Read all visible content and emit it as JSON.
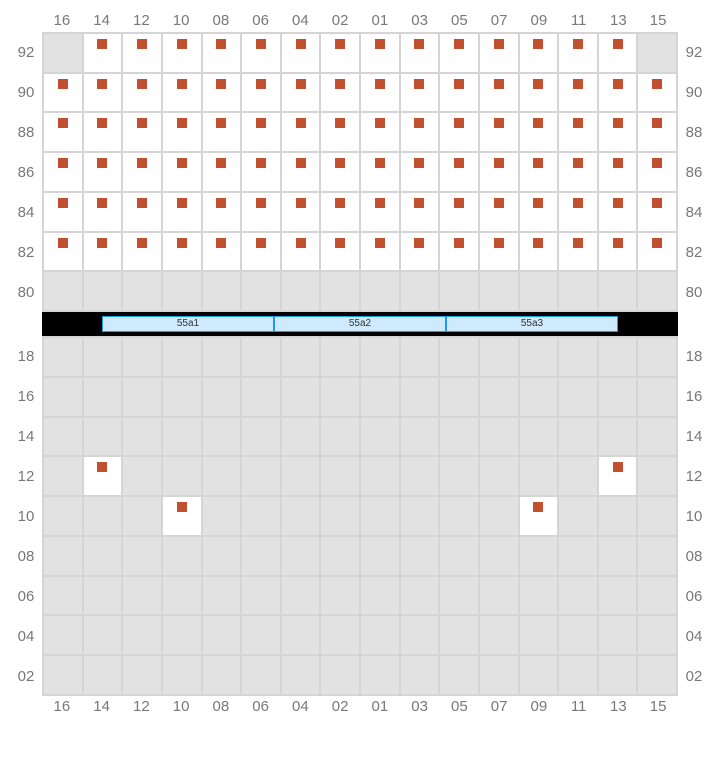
{
  "colors": {
    "marker": "#c05030",
    "empty_bg": "#e2e2e2",
    "seat_bg": "#ffffff",
    "border": "#d5d5d5",
    "label": "#787878",
    "table_bg": "#cfeafc",
    "table_border": "#2196f3",
    "table_strip_bg": "#000000"
  },
  "columns": [
    "16",
    "14",
    "12",
    "10",
    "08",
    "06",
    "04",
    "02",
    "01",
    "03",
    "05",
    "07",
    "09",
    "11",
    "13",
    "15"
  ],
  "top": {
    "rows": [
      "92",
      "90",
      "88",
      "86",
      "84",
      "82",
      "80"
    ],
    "cells": [
      [
        0,
        1,
        1,
        1,
        1,
        1,
        1,
        1,
        1,
        1,
        1,
        1,
        1,
        1,
        1,
        0
      ],
      [
        1,
        1,
        1,
        1,
        1,
        1,
        1,
        1,
        1,
        1,
        1,
        1,
        1,
        1,
        1,
        1
      ],
      [
        1,
        1,
        1,
        1,
        1,
        1,
        1,
        1,
        1,
        1,
        1,
        1,
        1,
        1,
        1,
        1
      ],
      [
        1,
        1,
        1,
        1,
        1,
        1,
        1,
        1,
        1,
        1,
        1,
        1,
        1,
        1,
        1,
        1
      ],
      [
        1,
        1,
        1,
        1,
        1,
        1,
        1,
        1,
        1,
        1,
        1,
        1,
        1,
        1,
        1,
        1
      ],
      [
        1,
        1,
        1,
        1,
        1,
        1,
        1,
        1,
        1,
        1,
        1,
        1,
        1,
        1,
        1,
        1
      ],
      [
        0,
        0,
        0,
        0,
        0,
        0,
        0,
        0,
        0,
        0,
        0,
        0,
        0,
        0,
        0,
        0
      ]
    ]
  },
  "tables": [
    "55a1",
    "55a2",
    "55a3"
  ],
  "bottom": {
    "rows": [
      "18",
      "16",
      "14",
      "12",
      "10",
      "08",
      "06",
      "04",
      "02"
    ],
    "cells": [
      [
        0,
        0,
        0,
        0,
        0,
        0,
        0,
        0,
        0,
        0,
        0,
        0,
        0,
        0,
        0,
        0
      ],
      [
        0,
        0,
        0,
        0,
        0,
        0,
        0,
        0,
        0,
        0,
        0,
        0,
        0,
        0,
        0,
        0
      ],
      [
        0,
        0,
        0,
        0,
        0,
        0,
        0,
        0,
        0,
        0,
        0,
        0,
        0,
        0,
        0,
        0
      ],
      [
        0,
        1,
        0,
        0,
        0,
        0,
        0,
        0,
        0,
        0,
        0,
        0,
        0,
        0,
        1,
        0
      ],
      [
        0,
        0,
        0,
        1,
        0,
        0,
        0,
        0,
        0,
        0,
        0,
        0,
        1,
        0,
        0,
        0
      ],
      [
        0,
        0,
        0,
        0,
        0,
        0,
        0,
        0,
        0,
        0,
        0,
        0,
        0,
        0,
        0,
        0
      ],
      [
        0,
        0,
        0,
        0,
        0,
        0,
        0,
        0,
        0,
        0,
        0,
        0,
        0,
        0,
        0,
        0
      ],
      [
        0,
        0,
        0,
        0,
        0,
        0,
        0,
        0,
        0,
        0,
        0,
        0,
        0,
        0,
        0,
        0
      ],
      [
        0,
        0,
        0,
        0,
        0,
        0,
        0,
        0,
        0,
        0,
        0,
        0,
        0,
        0,
        0,
        0
      ]
    ]
  }
}
